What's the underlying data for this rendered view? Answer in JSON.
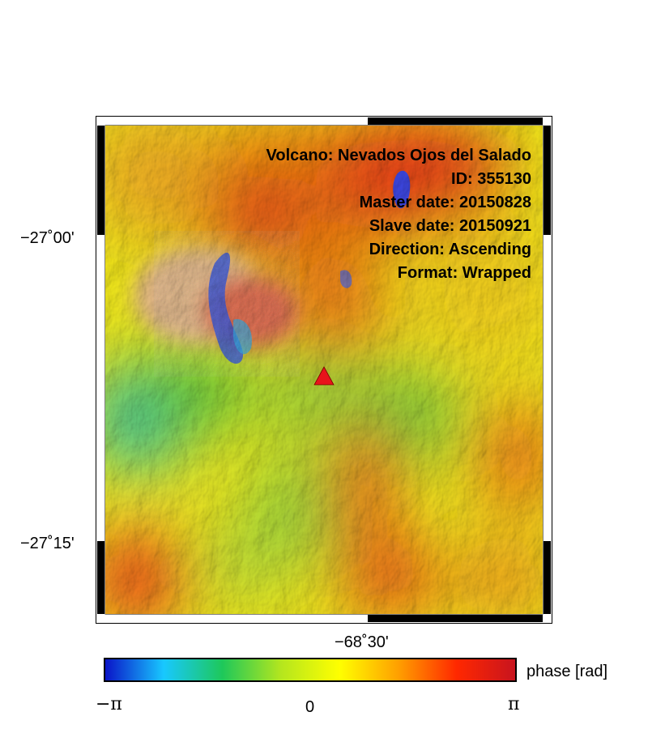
{
  "map": {
    "info": [
      "Volcano: Nevados Ojos del Salado",
      "ID: 355130",
      "Master date: 20150828",
      "Slave date: 20150921",
      "Direction: Ascending",
      "Format: Wrapped"
    ],
    "y_ticks": [
      "−27˚00'",
      "−27˚15'"
    ],
    "x_ticks": [
      "−68˚30'"
    ],
    "marker_icon": "volcano-triangle-icon",
    "marker_color": "#e8141b"
  },
  "colorbar": {
    "label": "phase [rad]",
    "ticks": [
      "−π",
      "0",
      "π"
    ],
    "colors": [
      "#0a14c8",
      "#18c8ff",
      "#1ec85a",
      "#b4e61e",
      "#ffff00",
      "#ffa000",
      "#ff2800",
      "#c8141e"
    ]
  }
}
